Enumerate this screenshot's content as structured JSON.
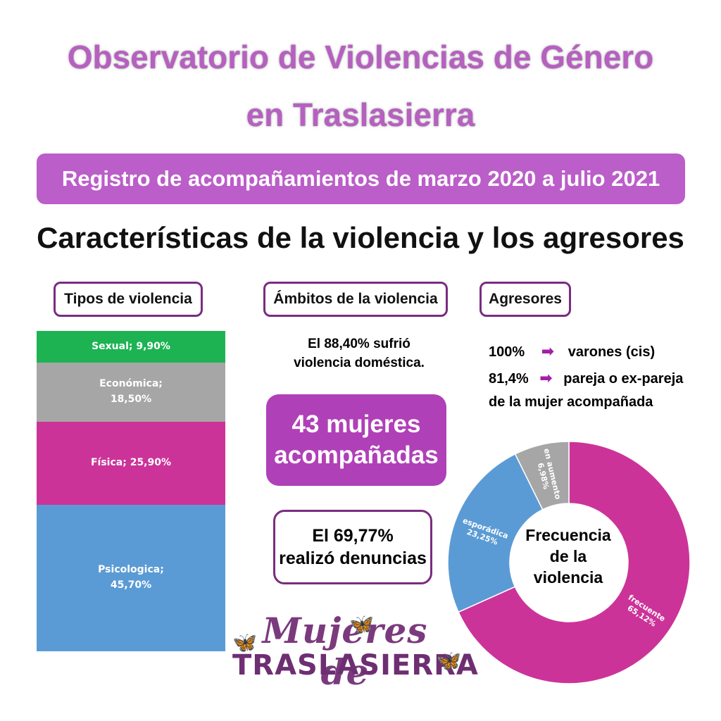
{
  "header": {
    "title_line1": "Observatorio de Violencias de Género",
    "title_line2": "en Traslasierra",
    "banner": "Registro de acompañamientos de marzo 2020 a julio 2021",
    "subtitle": "Características de la violencia y los agresores"
  },
  "sections": {
    "tipos": "Tipos de violencia",
    "ambitos": "Ámbitos de la violencia",
    "agresores": "Agresores"
  },
  "ambitos": {
    "line1": "El 88,40% sufrió",
    "line2": "violencia doméstica."
  },
  "acompanadas": {
    "line1": "43 mujeres",
    "line2": "acompañadas"
  },
  "denuncias": {
    "line1": "El 69,77%",
    "line2": "realizó denuncias"
  },
  "agresores": {
    "line1_value": "100%",
    "line1_text": "varones (cis)",
    "line2_value": "81,4%",
    "line2_text": "pareja o ex-pareja",
    "line3_text": "de la mujer acompañada"
  },
  "logo": {
    "line1": "Mujeres de",
    "line2": "TRASLASIERRA"
  },
  "colors": {
    "title": "#b660c0",
    "banner": "#bb5ec9",
    "sexual": "#1db353",
    "economica": "#a6a6a6",
    "fisica": "#cc3399",
    "psicologica": "#5b9bd5"
  },
  "chart_data": [
    {
      "type": "bar",
      "stacked": true,
      "categories": [
        "Sexual",
        "Económica",
        "Física",
        "Psicologica"
      ],
      "values": [
        9.9,
        18.5,
        25.9,
        45.7
      ],
      "labels": [
        "Sexual; 9,90%",
        "Económica;",
        "18,50%",
        "Física; 25,90%",
        "Psicologica;",
        "45,70%"
      ]
    },
    {
      "type": "pie",
      "donut": true,
      "title": "Frecuencia de la violencia",
      "title_lines": [
        "Frecuencia",
        "de la",
        "violencia"
      ],
      "categories": [
        "frecuente",
        "esporádica",
        "en aumento"
      ],
      "values": [
        65.12,
        23.25,
        6.98
      ],
      "value_labels": [
        "65,12%",
        "23,25%",
        "6,98%"
      ],
      "colors": [
        "#cc3399",
        "#5b9bd5",
        "#a6a6a6"
      ]
    }
  ]
}
